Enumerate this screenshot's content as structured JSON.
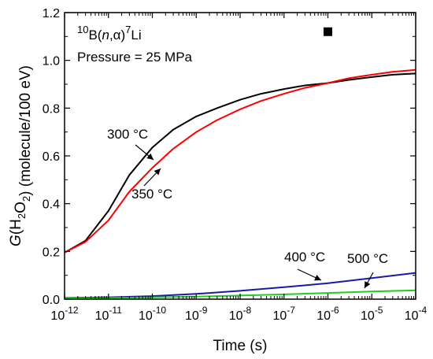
{
  "chart_data": {
    "type": "line",
    "x_scale": "log",
    "xlim": [
      "1e-12",
      "1e-4"
    ],
    "ylim": [
      0,
      1.2
    ],
    "xlabel": "Time (s)",
    "ylabel": "G(H2O2) (molecule/100 eV)",
    "xtick_mantissa": "10",
    "xtick_exponents": [
      "-12",
      "-11",
      "-10",
      "-9",
      "-8",
      "-7",
      "-6",
      "-5",
      "-4"
    ],
    "yticks": [
      "0.0",
      "0.2",
      "0.4",
      "0.6",
      "0.8",
      "1.0",
      "1.2"
    ],
    "annotation_lines": [
      "10B(n,α)7Li",
      "Pressure = 25 MPa"
    ],
    "experimental_point": {
      "x": "1e-6",
      "y": 1.12
    },
    "series": [
      {
        "name": "300 °C",
        "color": "#000000",
        "x": [
          "1e-12",
          "3e-12",
          "1e-11",
          "3e-11",
          "1e-10",
          "3e-10",
          "1e-9",
          "3e-9",
          "1e-8",
          "3e-8",
          "1e-7",
          "3e-7",
          "1e-6",
          "3e-6",
          "1e-5",
          "3e-5",
          "1e-4"
        ],
        "y": [
          0.195,
          0.245,
          0.37,
          0.52,
          0.635,
          0.71,
          0.765,
          0.8,
          0.835,
          0.86,
          0.88,
          0.895,
          0.905,
          0.918,
          0.93,
          0.94,
          0.945
        ]
      },
      {
        "name": "350 °C",
        "color": "#ff0000",
        "x": [
          "1e-12",
          "3e-12",
          "1e-11",
          "3e-11",
          "1e-10",
          "3e-10",
          "1e-9",
          "3e-9",
          "1e-8",
          "3e-8",
          "1e-7",
          "3e-7",
          "1e-6",
          "3e-6",
          "1e-5",
          "3e-5",
          "1e-4"
        ],
        "y": [
          0.195,
          0.24,
          0.33,
          0.45,
          0.55,
          0.63,
          0.7,
          0.75,
          0.795,
          0.83,
          0.86,
          0.885,
          0.905,
          0.925,
          0.94,
          0.952,
          0.96
        ]
      },
      {
        "name": "400 °C",
        "color": "#1a1aaa",
        "x": [
          "1e-12",
          "1e-11",
          "1e-10",
          "1e-9",
          "1e-8",
          "1e-7",
          "1e-6",
          "1e-5",
          "1e-4"
        ],
        "y": [
          0.005,
          0.008,
          0.013,
          0.022,
          0.035,
          0.05,
          0.067,
          0.088,
          0.11
        ]
      },
      {
        "name": "500 °C",
        "color": "#22cc22",
        "x": [
          "1e-12",
          "1e-11",
          "1e-10",
          "1e-9",
          "1e-8",
          "1e-7",
          "1e-6",
          "1e-5",
          "1e-4"
        ],
        "y": [
          0.003,
          0.005,
          0.008,
          0.011,
          0.015,
          0.02,
          0.026,
          0.032,
          0.037
        ]
      }
    ]
  }
}
